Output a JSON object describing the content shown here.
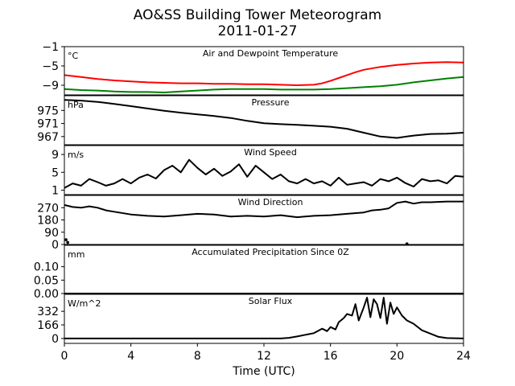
{
  "figure": {
    "title": "AO&SS Building Tower Meteorogram",
    "subtitle": "2011-01-27",
    "xlabel": "Time (UTC)"
  },
  "chart_data": {
    "type": "line",
    "x_axis": {
      "range": [
        0,
        24
      ],
      "ticks": [
        0,
        4,
        8,
        12,
        16,
        20,
        24
      ],
      "tick_labels": [
        "0",
        "4",
        "8",
        "12",
        "16",
        "20",
        "24"
      ]
    },
    "panels": [
      {
        "id": "temperature",
        "title": "Air and Dewpoint Temperature",
        "unit": "°C",
        "ylim": [
          -11,
          -1
        ],
        "yticks": [
          -1,
          -5,
          -9
        ],
        "ytick_labels": [
          "−1",
          "−5",
          "−9"
        ],
        "series": [
          {
            "color": "#ff0000",
            "x": [
              0,
              1,
              2,
              3,
              4,
              5,
              6,
              7,
              8,
              9,
              10,
              11,
              12,
              13,
              14,
              15,
              15.5,
              16,
              16.5,
              17,
              17.5,
              18,
              19,
              20,
              21,
              22,
              23,
              24
            ],
            "y": [
              -6.9,
              -7.3,
              -7.7,
              -8.0,
              -8.2,
              -8.4,
              -8.5,
              -8.6,
              -8.6,
              -8.7,
              -8.7,
              -8.8,
              -8.8,
              -8.9,
              -9.0,
              -8.9,
              -8.6,
              -8.1,
              -7.5,
              -6.9,
              -6.3,
              -5.8,
              -5.2,
              -4.8,
              -4.5,
              -4.3,
              -4.2,
              -4.3
            ]
          },
          {
            "color": "#008000",
            "x": [
              0,
              1,
              2,
              3,
              4,
              5,
              6,
              7,
              8,
              9,
              10,
              11,
              12,
              13,
              14,
              15,
              16,
              17,
              18,
              19,
              20,
              21,
              22,
              23,
              24
            ],
            "y": [
              -9.8,
              -10.0,
              -10.1,
              -10.3,
              -10.4,
              -10.4,
              -10.5,
              -10.3,
              -10.1,
              -9.9,
              -9.8,
              -9.8,
              -9.8,
              -9.9,
              -9.9,
              -9.9,
              -9.8,
              -9.6,
              -9.4,
              -9.2,
              -8.9,
              -8.4,
              -8.0,
              -7.6,
              -7.3
            ]
          }
        ]
      },
      {
        "id": "pressure",
        "title": "Pressure",
        "unit": "hPa",
        "ylim": [
          964.5,
          979.5
        ],
        "yticks": [
          975,
          971,
          967
        ],
        "ytick_labels": [
          "975",
          "971",
          "967"
        ],
        "series": [
          {
            "color": "#000000",
            "x": [
              0,
              1,
              2,
              3,
              4,
              5,
              6,
              7,
              8,
              9,
              10,
              11,
              12,
              13,
              14,
              15,
              16,
              17,
              18,
              19,
              20,
              21,
              22,
              23,
              24
            ],
            "y": [
              978.2,
              978.0,
              977.6,
              977.0,
              976.3,
              975.6,
              974.9,
              974.3,
              973.8,
              973.3,
              972.7,
              971.8,
              971.1,
              970.8,
              970.6,
              970.3,
              970.0,
              969.4,
              968.2,
              967.0,
              966.6,
              967.3,
              967.8,
              967.9,
              968.2
            ]
          }
        ]
      },
      {
        "id": "wind_speed",
        "title": "Wind Speed",
        "unit": "m/s",
        "ylim": [
          0,
          11
        ],
        "yticks": [
          9,
          5,
          1
        ],
        "ytick_labels": [
          "9",
          "5",
          "1"
        ],
        "series": [
          {
            "color": "#000000",
            "x": [
              0,
              0.5,
              1,
              1.5,
              2,
              2.5,
              3,
              3.5,
              4,
              4.5,
              5,
              5.5,
              6,
              6.5,
              7,
              7.5,
              8,
              8.5,
              9,
              9.5,
              10,
              10.5,
              11,
              11.5,
              12,
              12.5,
              13,
              13.5,
              14,
              14.5,
              15,
              15.5,
              16,
              16.5,
              17,
              17.5,
              18,
              18.5,
              19,
              19.5,
              20,
              20.5,
              21,
              21.5,
              22,
              22.5,
              23,
              23.5,
              24
            ],
            "y": [
              1.5,
              2.5,
              2.0,
              3.5,
              2.8,
              2.0,
              2.5,
              3.5,
              2.5,
              3.8,
              4.5,
              3.6,
              5.5,
              6.5,
              5.0,
              7.8,
              6.0,
              4.5,
              5.8,
              4.2,
              5.2,
              6.8,
              4.0,
              6.5,
              5.0,
              3.5,
              4.5,
              3.0,
              2.5,
              3.5,
              2.5,
              3.0,
              2.0,
              3.8,
              2.2,
              2.5,
              2.8,
              2.0,
              3.5,
              3.0,
              3.8,
              2.6,
              1.8,
              3.5,
              3.0,
              3.2,
              2.5,
              4.2,
              4.0
            ]
          }
        ]
      },
      {
        "id": "wind_direction",
        "title": "Wind Direction",
        "unit": "",
        "ylim": [
          0,
          360
        ],
        "yticks": [
          270,
          180,
          90,
          0
        ],
        "ytick_labels": [
          "270",
          "180",
          "90",
          "0"
        ],
        "series": [
          {
            "color": "#000000",
            "x": [
              0,
              0.5,
              1,
              1.5,
              2,
              2.5,
              3,
              4,
              5,
              6,
              7,
              8,
              9,
              10,
              11,
              12,
              13,
              14,
              15,
              16,
              17,
              18,
              18.5,
              19,
              19.5,
              20,
              20.5,
              21,
              21.5,
              22,
              23,
              24
            ],
            "y": [
              290,
              275,
              270,
              280,
              270,
              250,
              240,
              220,
              210,
              205,
              215,
              225,
              220,
              205,
              210,
              205,
              215,
              200,
              210,
              215,
              225,
              235,
              250,
              255,
              265,
              305,
              315,
              300,
              310,
              310,
              315,
              315
            ]
          },
          {
            "color": "#000000",
            "markers": true,
            "x": [
              0.1,
              0.2,
              20.6
            ],
            "y": [
              35,
              15,
              5
            ]
          }
        ]
      },
      {
        "id": "precipitation",
        "title": "Accumulated Precipitation Since 0Z",
        "unit": "mm",
        "ylim": [
          0,
          0.18
        ],
        "yticks": [
          0.1,
          0.05,
          0.0
        ],
        "ytick_labels": [
          "0.10",
          "0.05",
          "0.00"
        ],
        "series": [
          {
            "color": "#000000",
            "x": [
              0,
              24
            ],
            "y": [
              0,
              0
            ]
          }
        ]
      },
      {
        "id": "solar",
        "title": "Solar Flux",
        "unit": "W/m^2",
        "ylim": [
          -60,
          540
        ],
        "yticks": [
          332,
          166,
          0
        ],
        "ytick_labels": [
          "332",
          "166",
          "0"
        ],
        "series": [
          {
            "color": "#000000",
            "x": [
              0,
              13,
              13.5,
              14,
              14.5,
              15,
              15.5,
              15.8,
              16,
              16.3,
              16.5,
              16.8,
              17,
              17.3,
              17.5,
              17.7,
              18,
              18.2,
              18.4,
              18.6,
              18.8,
              19,
              19.2,
              19.4,
              19.6,
              19.8,
              20,
              20.3,
              20.6,
              21,
              21.5,
              22,
              22.5,
              23,
              24
            ],
            "y": [
              0,
              0,
              8,
              25,
              45,
              65,
              120,
              90,
              140,
              110,
              200,
              250,
              300,
              280,
              420,
              220,
              380,
              500,
              260,
              480,
              420,
              250,
              500,
              180,
              440,
              300,
              380,
              280,
              220,
              180,
              100,
              60,
              20,
              5,
              0
            ]
          }
        ]
      }
    ]
  }
}
